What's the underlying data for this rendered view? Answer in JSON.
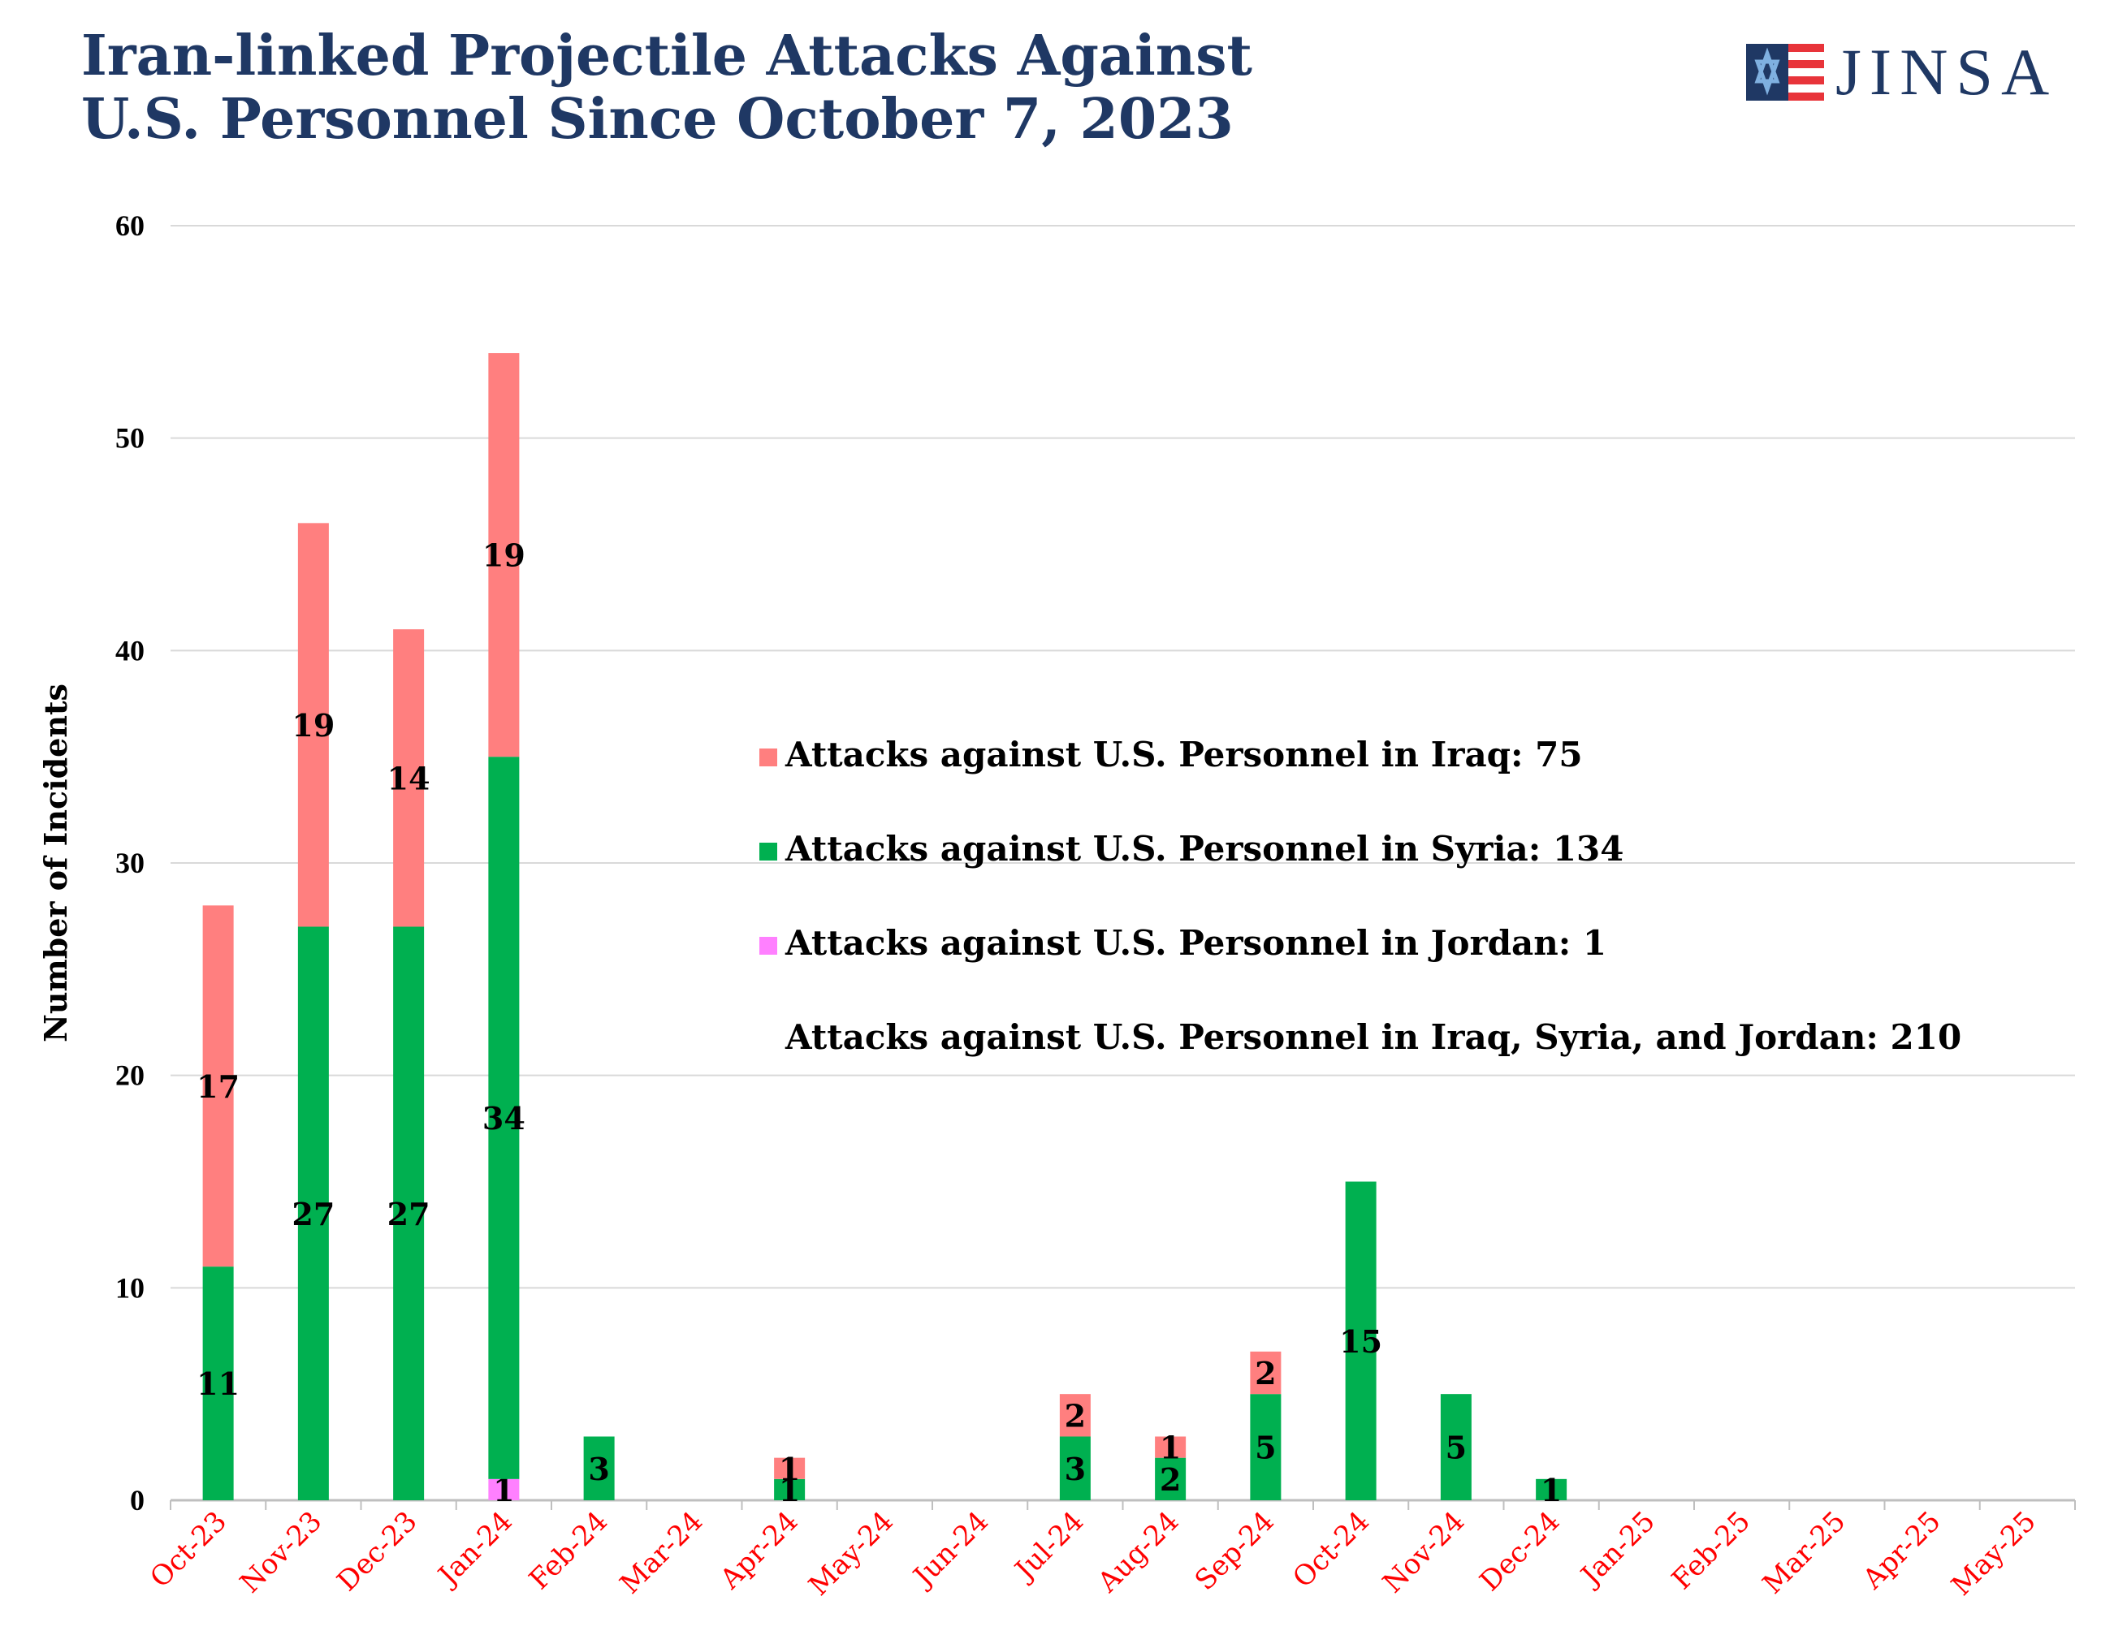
{
  "header": {
    "title_line1": "Iran-linked Projectile Attacks Against",
    "title_line2": "U.S. Personnel Since October 7, 2023",
    "logo_text": "JINSA"
  },
  "chart_data": {
    "type": "bar",
    "stacked": true,
    "title": "Iran-linked Projectile Attacks Against U.S. Personnel Since October 7, 2023",
    "xlabel": "",
    "ylabel": "Number of Incidents",
    "ylim": [
      0,
      60
    ],
    "yticks": [
      0,
      10,
      20,
      30,
      40,
      50,
      60
    ],
    "grid": true,
    "legend_position": "center-right",
    "categories": [
      "Oct-23",
      "Nov-23",
      "Dec-23",
      "Jan-24",
      "Feb-24",
      "Mar-24",
      "Apr-24",
      "May-24",
      "Jun-24",
      "Jul-24",
      "Aug-24",
      "Sep-24",
      "Oct-24",
      "Nov-24",
      "Dec-24",
      "Jan-25",
      "Feb-25",
      "Mar-25",
      "Apr-25",
      "May-25"
    ],
    "series": [
      {
        "name": "Attacks against U.S. Personnel in Jordan: 1",
        "color": "#ff80ff",
        "values": [
          0,
          0,
          0,
          1,
          0,
          0,
          0,
          0,
          0,
          0,
          0,
          0,
          0,
          0,
          0,
          0,
          0,
          0,
          0,
          0
        ]
      },
      {
        "name": "Attacks against U.S. Personnel in Syria: 134",
        "color": "#00b050",
        "values": [
          11,
          27,
          27,
          34,
          3,
          0,
          1,
          0,
          0,
          3,
          2,
          5,
          15,
          5,
          1,
          0,
          0,
          0,
          0,
          0
        ]
      },
      {
        "name": "Attacks against U.S. Personnel in Iraq: 75",
        "color": "#ff7f7f",
        "values": [
          17,
          19,
          14,
          19,
          0,
          0,
          1,
          0,
          0,
          2,
          1,
          2,
          0,
          0,
          0,
          0,
          0,
          0,
          0,
          0
        ]
      }
    ],
    "legend": [
      {
        "label": "Attacks against U.S. Personnel in Iraq: 75",
        "color": "#ff7f7f"
      },
      {
        "label": "Attacks against U.S. Personnel in Syria: 134",
        "color": "#00b050"
      },
      {
        "label": "Attacks against U.S. Personnel in Jordan: 1",
        "color": "#ff80ff"
      },
      {
        "label": "Attacks against U.S. Personnel in Iraq, Syria, and Jordan: 210",
        "color": ""
      }
    ],
    "colors": {
      "grid": "#d9d9d9",
      "axis": "#bfbfbf",
      "xtick_text": "#ff0000",
      "title": "#1f3864"
    }
  }
}
